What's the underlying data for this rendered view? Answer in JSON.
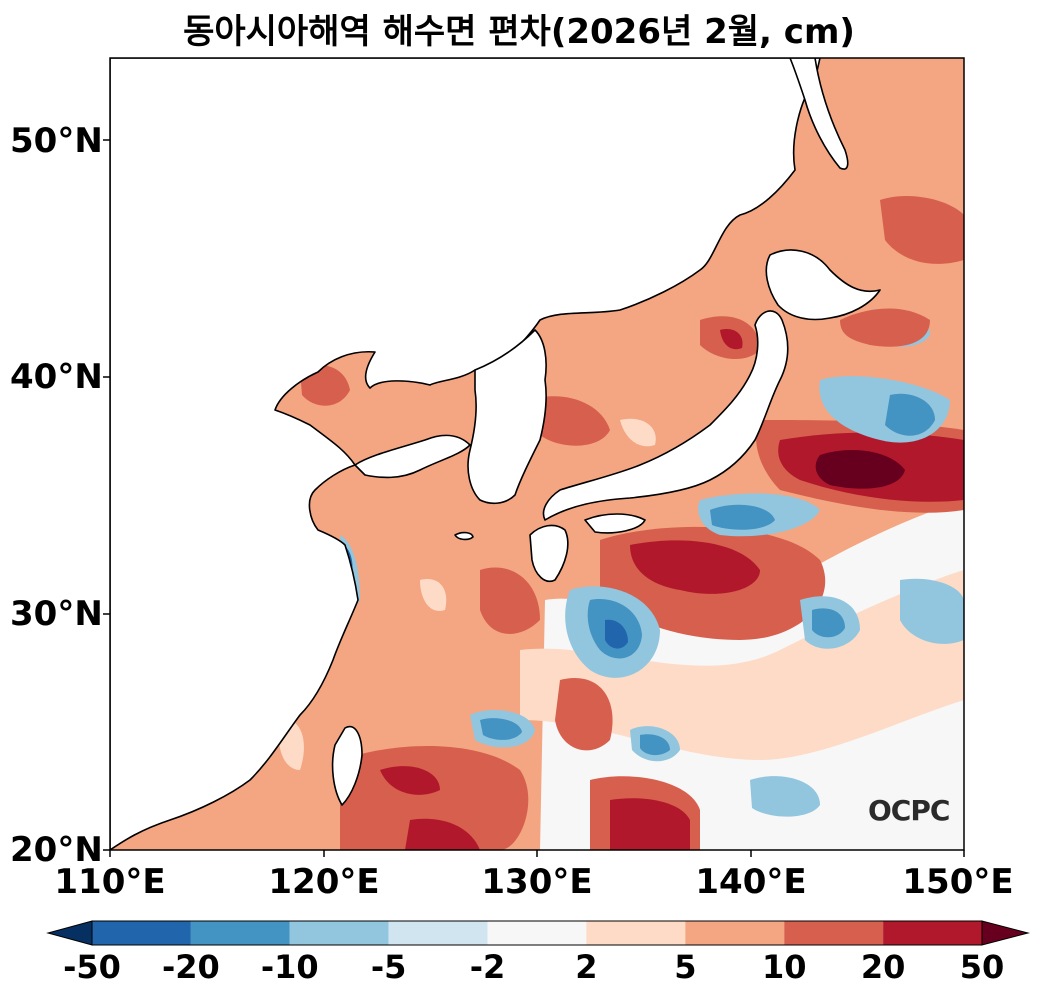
{
  "title": "동아시아해역 해수면 편차(2026년 2월, cm)",
  "watermark": "OCPC",
  "map": {
    "region": "East Asian seas",
    "x_range_lon": [
      110,
      150
    ],
    "y_range_lat": [
      20,
      53.5
    ],
    "y_ticks": [
      "50°N",
      "40°N",
      "30°N",
      "20°N"
    ],
    "x_ticks": [
      "110°E",
      "120°E",
      "130°E",
      "140°E",
      "150°E"
    ],
    "land_color": "#ffffff",
    "coastline_color": "#000000"
  },
  "colorbar": {
    "labels": [
      "-50",
      "-20",
      "-10",
      "-5",
      "-2",
      "2",
      "5",
      "10",
      "20",
      "50"
    ],
    "colors": [
      "#053061",
      "#2166ac",
      "#4393c3",
      "#92c5de",
      "#d1e5f0",
      "#f7f7f7",
      "#fddbc7",
      "#f4a582",
      "#d6604d",
      "#b2182b",
      "#67001f"
    ],
    "extend": "both"
  }
}
